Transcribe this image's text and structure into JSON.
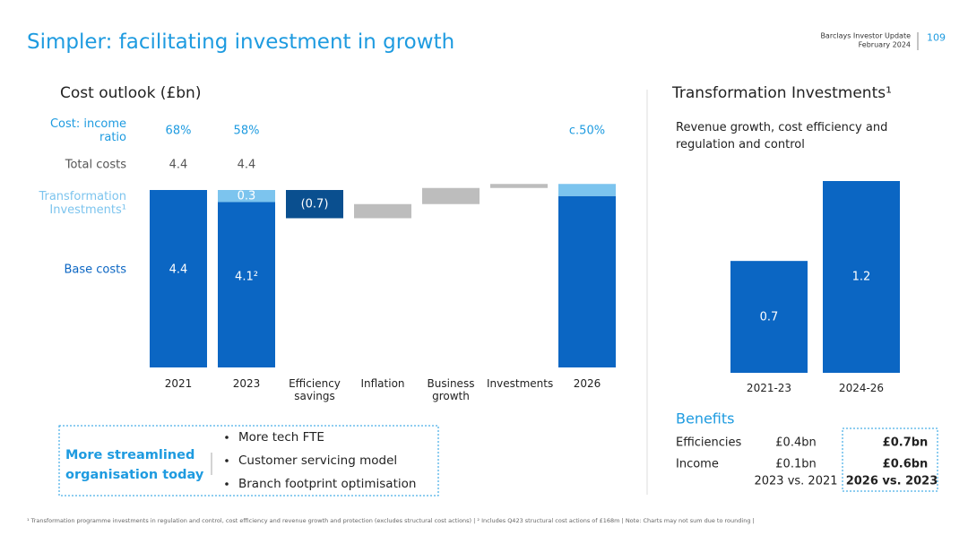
{
  "header": {
    "title": "Simpler: facilitating investment in growth",
    "source": "Barclays Investor Update",
    "date": "February 2024",
    "page": 109
  },
  "chart_data": [
    {
      "type": "waterfall",
      "title": "Cost outlook (£bn)",
      "categories": [
        "2021",
        "2023",
        "Efficiency savings",
        "Inflation",
        "Business growth",
        "Investments",
        "2026"
      ],
      "series": [
        {
          "name": "Base costs",
          "color": "#0b66c3",
          "values": [
            4.4,
            4.1,
            null,
            null,
            null,
            null,
            4.25
          ],
          "value_labels": [
            "4.4",
            "4.1²",
            null,
            null,
            null,
            null,
            null
          ]
        },
        {
          "name": "Transformation Investments¹",
          "color": "#7cc4ee",
          "values": [
            null,
            0.3,
            null,
            null,
            null,
            null,
            0.3
          ],
          "value_labels": [
            null,
            "0.3",
            null,
            null,
            null,
            null,
            null
          ]
        }
      ],
      "steps": {
        "values": [
          null,
          null,
          -0.7,
          0.35,
          0.4,
          0.1,
          null
        ],
        "value_labels": [
          null,
          null,
          "(0.7)",
          null,
          null,
          null,
          null
        ],
        "colors": [
          null,
          null,
          "#0a4f8f",
          "#bdbdbd",
          "#bdbdbd",
          "#bdbdbd",
          null
        ]
      },
      "rows": [
        {
          "name": "Cost: income ratio",
          "values": [
            68,
            58,
            null,
            null,
            null,
            null,
            50
          ],
          "value_labels": [
            "68%",
            "58%",
            null,
            null,
            null,
            null,
            "c.50%"
          ]
        },
        {
          "name": "Total costs",
          "values": [
            4.4,
            4.4,
            null,
            null,
            null,
            null,
            null
          ]
        }
      ],
      "ylim": [
        0,
        5
      ]
    },
    {
      "type": "bar",
      "title": "Transformation Investments¹",
      "subtitle": "Revenue growth, cost efficiency and regulation and control",
      "categories": [
        "2021-23",
        "2024-26"
      ],
      "values": [
        0.7,
        1.2
      ],
      "color": "#0b66c3",
      "ylim": [
        0,
        1.2
      ]
    }
  ],
  "benefits": {
    "title": "Benefits",
    "rows": [
      [
        "Efficiencies",
        "£0.4bn",
        "£0.7bn"
      ],
      [
        "Income",
        "£0.1bn",
        "£0.6bn"
      ]
    ],
    "columns": [
      "2023 vs. 2021",
      "2026 vs. 2023"
    ]
  },
  "callout": {
    "title": "More streamlined organisation today",
    "bullets": [
      "More tech FTE",
      "Customer servicing model",
      "Branch footprint optimisation"
    ]
  },
  "footnote": "¹ Transformation programme investments in regulation and control, cost efficiency and revenue growth and protection (excludes structural cost actions) | ² Includes Q423 structural cost actions of £168m | Note: Charts may not sum due to rounding |"
}
